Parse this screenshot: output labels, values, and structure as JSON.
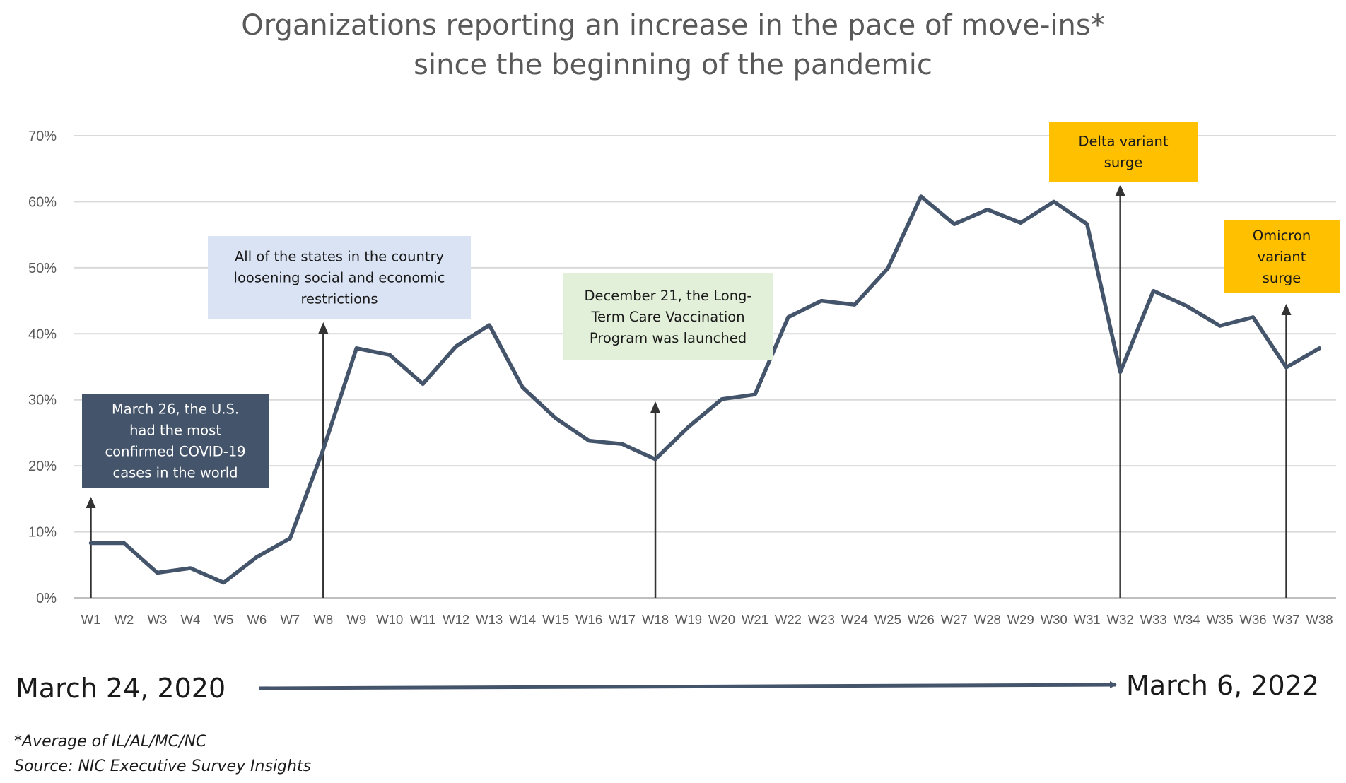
{
  "chart_data": {
    "type": "line",
    "title": [
      "Organizations reporting an increase in the pace of move-ins*",
      "since the beginning of the pandemic"
    ],
    "categories": [
      "W1",
      "W2",
      "W3",
      "W4",
      "W5",
      "W6",
      "W7",
      "W8",
      "W9",
      "W10",
      "W11",
      "W12",
      "W13",
      "W14",
      "W15",
      "W16",
      "W17",
      "W18",
      "W19",
      "W20",
      "W21",
      "W22",
      "W23",
      "W24",
      "W25",
      "W26",
      "W27",
      "W28",
      "W29",
      "W30",
      "W31",
      "W32",
      "W33",
      "W34",
      "W35",
      "W36",
      "W37",
      "W38"
    ],
    "values": [
      8.3,
      8.3,
      3.8,
      4.5,
      2.3,
      6.2,
      9.0,
      22.5,
      37.8,
      36.8,
      32.4,
      38.1,
      41.3,
      31.9,
      27.2,
      23.8,
      23.3,
      21.0,
      25.9,
      30.1,
      30.8,
      42.5,
      45.0,
      44.4,
      49.9,
      60.8,
      56.6,
      58.8,
      56.8,
      60.0,
      56.6,
      34.2,
      46.5,
      44.2,
      41.2,
      42.5,
      34.9,
      37.8
    ],
    "y_ticks": [
      "0%",
      "10%",
      "20%",
      "30%",
      "40%",
      "50%",
      "60%",
      "70%"
    ],
    "ylim": [
      0,
      70
    ],
    "grid": true,
    "legend": "none",
    "line_color": "#44546a",
    "annotations": [
      {
        "lines": [
          "March 26, the U.S.",
          "had the most",
          "confirmed COVID-19",
          "cases in the world"
        ],
        "at": "W1",
        "style": "dark"
      },
      {
        "lines": [
          "All of the states in the country",
          "loosening social and economic",
          "restrictions"
        ],
        "at": "W8",
        "style": "blue"
      },
      {
        "lines": [
          "December 21, the Long-",
          "Term Care Vaccination",
          "Program was launched"
        ],
        "at": "W18",
        "style": "green"
      },
      {
        "lines": [
          "Delta variant",
          "surge"
        ],
        "at": "W32",
        "style": "gold"
      },
      {
        "lines": [
          "Omicron",
          "variant",
          "surge"
        ],
        "at": "W37",
        "style": "gold"
      }
    ]
  },
  "colors": {
    "dark_box": "#44546a",
    "blue_box": "#dae3f3",
    "green_box": "#e2f0d9",
    "gold_box": "#ffc000",
    "arrow": "#333333",
    "grid": "#d9d9d9",
    "timeline_arrow": "#44546a"
  },
  "timeline": {
    "start": "March 24, 2020",
    "end": "March 6, 2022"
  },
  "footnote": "*Average of IL/AL/MC/NC",
  "source": "Source: NIC Executive Survey Insights"
}
